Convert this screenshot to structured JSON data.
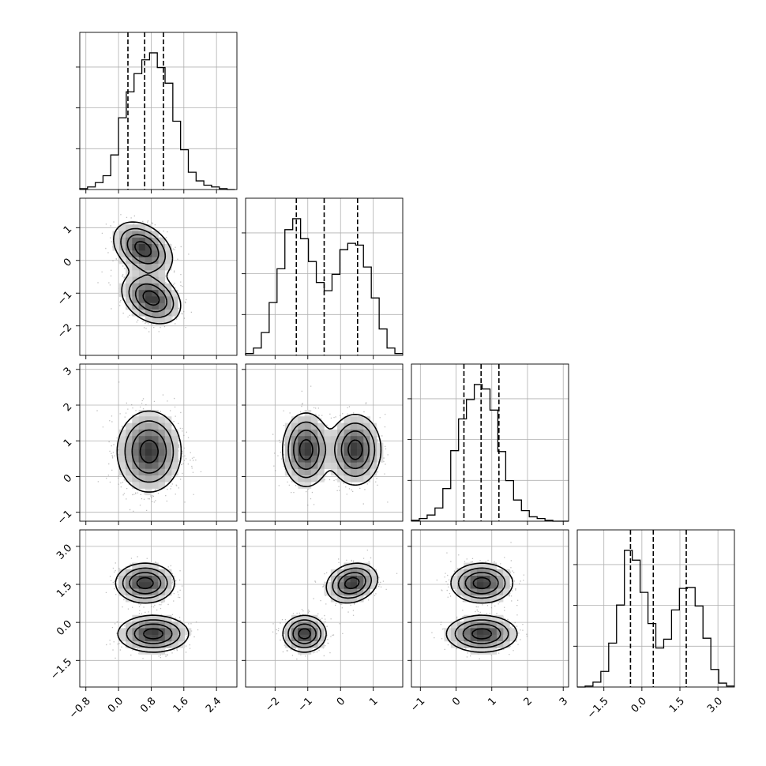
{
  "chart_data": {
    "type": "corner",
    "grid": true,
    "quantiles": [
      0.16,
      0.5,
      0.84
    ],
    "parameters": [
      {
        "range": [
          -0.95,
          2.9
        ],
        "ticks": [
          -0.8,
          0.0,
          0.8,
          1.6,
          2.4
        ],
        "tick_labels": [
          "−0.8",
          "0.0",
          "0.8",
          "1.6",
          "2.4"
        ],
        "quantile_values": [
          0.23,
          0.64,
          1.1
        ],
        "hist_start": -0.95,
        "hist_width": 0.19,
        "hist_counts": [
          1,
          3,
          8,
          16,
          40,
          83,
          113,
          134,
          150,
          158,
          141,
          123,
          79,
          46,
          20,
          10,
          5,
          3,
          1,
          0
        ]
      },
      {
        "range": [
          -2.9,
          1.9
        ],
        "ticks": [
          -2,
          -1,
          0,
          1
        ],
        "tick_labels": [
          "−2",
          "−1",
          "0",
          "1"
        ],
        "quantile_values": [
          -1.35,
          -0.5,
          0.52
        ],
        "hist_start": -2.9,
        "hist_width": 0.24,
        "hist_counts": [
          2,
          8,
          25,
          58,
          95,
          138,
          150,
          128,
          103,
          80,
          71,
          89,
          116,
          123,
          121,
          97,
          63,
          29,
          8,
          2
        ]
      },
      {
        "range": [
          -1.25,
          3.15
        ],
        "ticks": [
          -1,
          0,
          1,
          2,
          3
        ],
        "tick_labels": [
          "−1",
          "0",
          "1",
          "2",
          "3"
        ],
        "quantile_values": [
          0.22,
          0.7,
          1.2
        ],
        "hist_start": -1.25,
        "hist_width": 0.22,
        "hist_counts": [
          1,
          3,
          7,
          15,
          37,
          80,
          116,
          138,
          155,
          150,
          126,
          79,
          46,
          24,
          12,
          5,
          3,
          1,
          0,
          0
        ]
      },
      {
        "range": [
          -2.55,
          3.65
        ],
        "ticks": [
          -1.5,
          0.0,
          1.5,
          3.0
        ],
        "tick_labels": [
          "−1.5",
          "0.0",
          "1.5",
          "3.0"
        ],
        "quantile_values": [
          -0.45,
          0.45,
          1.75
        ],
        "hist_start": -2.55,
        "hist_width": 0.31,
        "hist_counts": [
          0,
          1,
          5,
          16,
          45,
          84,
          140,
          130,
          97,
          65,
          40,
          49,
          79,
          101,
          102,
          83,
          50,
          18,
          4,
          1
        ]
      }
    ],
    "pairs": [
      {
        "row": 1,
        "col": 0,
        "modes": [
          {
            "mx": 0.6,
            "my": 0.35,
            "sx": 0.35,
            "sy": 0.4,
            "r": -0.35,
            "w": 1
          },
          {
            "mx": 0.8,
            "my": -1.15,
            "sx": 0.35,
            "sy": 0.38,
            "r": -0.3,
            "w": 1
          }
        ]
      },
      {
        "row": 2,
        "col": 0,
        "modes": [
          {
            "mx": 0.75,
            "my": 0.7,
            "sx": 0.38,
            "sy": 0.55,
            "r": 0,
            "w": 1
          }
        ]
      },
      {
        "row": 2,
        "col": 1,
        "modes": [
          {
            "mx": -1.05,
            "my": 0.75,
            "sx": 0.35,
            "sy": 0.5,
            "r": 0,
            "w": 1
          },
          {
            "mx": 0.45,
            "my": 0.75,
            "sx": 0.38,
            "sy": 0.48,
            "r": 0,
            "w": 1
          }
        ]
      },
      {
        "row": 3,
        "col": 0,
        "modes": [
          {
            "mx": 0.65,
            "my": 1.55,
            "sx": 0.35,
            "sy": 0.38,
            "r": 0,
            "w": 1
          },
          {
            "mx": 0.85,
            "my": -0.45,
            "sx": 0.42,
            "sy": 0.35,
            "r": 0,
            "w": 1
          }
        ]
      },
      {
        "row": 3,
        "col": 1,
        "modes": [
          {
            "mx": 0.35,
            "my": 1.55,
            "sx": 0.38,
            "sy": 0.38,
            "r": 0.2,
            "w": 1
          },
          {
            "mx": -1.1,
            "my": -0.45,
            "sx": 0.32,
            "sy": 0.35,
            "r": 0,
            "w": 1
          }
        ]
      },
      {
        "row": 3,
        "col": 2,
        "modes": [
          {
            "mx": 0.72,
            "my": 1.55,
            "sx": 0.42,
            "sy": 0.38,
            "r": 0,
            "w": 1
          },
          {
            "mx": 0.72,
            "my": -0.45,
            "sx": 0.48,
            "sy": 0.35,
            "r": 0,
            "w": 1
          }
        ]
      }
    ]
  }
}
